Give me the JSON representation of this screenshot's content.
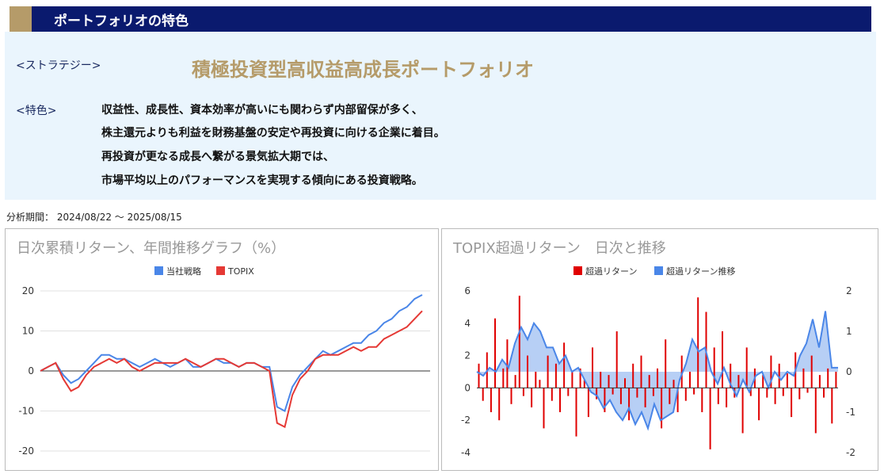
{
  "header": {
    "title": "ポートフォリオの特色"
  },
  "strategy": {
    "label": "<ストラテジー>",
    "name": "積極投資型高収益高成長ポートフォリオ"
  },
  "features": {
    "label": "<特色>",
    "lines": [
      "収益性、成長性、資本効率が高いにも関わらず内部留保が多く、",
      "株主還元よりも利益を財務基盤の安定や再投資に向ける企業に着目。",
      "再投資が更なる成長へ繋がる景気拡大期では、",
      "市場平均以上のパフォーマンスを実現する傾向にある投資戦略。"
    ]
  },
  "period": "分析期間： 2024/08/22 ～ 2025/08/15",
  "chart_data": [
    {
      "type": "line",
      "title": "日次累積リターン、年間推移グラフ（%）",
      "legend_position": "top",
      "ylim": [
        -20,
        20
      ],
      "yticks": [
        "20",
        "10",
        "0",
        "-10",
        "-20"
      ],
      "series": [
        {
          "name": "当社戦略",
          "color": "#4a86e8",
          "values": [
            0,
            1,
            2,
            -1,
            -3,
            -2,
            0,
            2,
            4,
            4,
            3,
            3,
            2,
            1,
            2,
            3,
            2,
            1,
            2,
            3,
            1,
            1,
            2,
            3,
            2,
            2,
            1,
            2,
            2,
            1,
            1,
            -9,
            -10,
            -4,
            -1,
            1,
            3,
            5,
            4,
            5,
            6,
            7,
            7,
            9,
            10,
            12,
            13,
            15,
            16,
            18,
            19
          ]
        },
        {
          "name": "TOPIX",
          "color": "#e53935",
          "values": [
            0,
            1,
            2,
            -2,
            -5,
            -4,
            -1,
            1,
            2,
            3,
            2,
            3,
            1,
            0,
            1,
            2,
            2,
            2,
            2,
            3,
            2,
            1,
            2,
            3,
            3,
            2,
            1,
            2,
            2,
            1,
            0,
            -13,
            -14,
            -6,
            -2,
            0,
            3,
            4,
            4,
            4,
            5,
            6,
            5,
            6,
            6,
            8,
            9,
            10,
            11,
            13,
            15
          ]
        }
      ]
    },
    {
      "type": "bar+area",
      "title": "TOPIX超過リターン　日次と推移",
      "legend_position": "top",
      "y_left": {
        "range": [
          -4,
          6
        ],
        "ticks": [
          "6",
          "4",
          "2",
          "0",
          "-2",
          "-4"
        ]
      },
      "y_right": {
        "range": [
          -2,
          2
        ],
        "ticks": [
          "2",
          "1",
          "0",
          "-1",
          "-2"
        ]
      },
      "series": [
        {
          "name": "超過リターン",
          "color": "#e00000",
          "axis": "left",
          "type": "bar",
          "values": [
            1.5,
            -0.8,
            2.2,
            -1.5,
            4.3,
            -2.0,
            1.2,
            3.0,
            -1.0,
            0.8,
            5.7,
            -0.5,
            2.0,
            -1.2,
            1.0,
            0.5,
            -2.5,
            2.0,
            -0.8,
            1.5,
            -1.5,
            2.8,
            -0.5,
            1.0,
            -3.0,
            1.2,
            0.5,
            -1.8,
            2.5,
            -0.7,
            1.0,
            -1.5,
            0.8,
            -0.4,
            3.5,
            -1.0,
            0.6,
            -2.0,
            1.5,
            -0.6,
            2.0,
            -1.2,
            0.8,
            -0.5,
            1.2,
            -2.5,
            3.0,
            -1.0,
            0.5,
            -1.5,
            2.0,
            -0.8,
            1.0,
            -0.4,
            5.6,
            -1.5,
            4.7,
            -3.8,
            2.5,
            -1.0,
            3.5,
            -1.2,
            1.5,
            -0.6,
            0.8,
            -2.8,
            2.5,
            -0.5,
            1.2,
            -2.0,
            0.8,
            -0.6,
            2.0,
            -1.0,
            1.5,
            -0.5,
            0.9,
            -1.8,
            2.2,
            -0.7,
            1.2,
            -0.3,
            2.0,
            -2.8,
            0.8,
            -0.6,
            1.2,
            -2.2,
            1.0
          ]
        },
        {
          "name": "超過リターン推移",
          "color": "#4a86e8",
          "fill": "#b7cff5",
          "axis": "right",
          "type": "area",
          "values": [
            0,
            -0.1,
            0.1,
            0,
            0.3,
            0.1,
            0.7,
            1.1,
            0.8,
            1.2,
            1.0,
            0.6,
            0.6,
            0.2,
            0.4,
            0,
            0.1,
            -0.2,
            -0.5,
            -0.6,
            -0.9,
            -0.7,
            -1.0,
            -1.2,
            -0.9,
            -1.3,
            -1.0,
            -1.4,
            -0.8,
            -1.2,
            -1.1,
            -1.0,
            -0.2,
            0.2,
            0.8,
            0.5,
            0.6,
            0,
            -0.3,
            0.1,
            -0.3,
            -0.6,
            -0.2,
            -0.5,
            -0.1,
            0,
            -0.4,
            0,
            -0.2,
            0,
            -0.1,
            0.4,
            0.7,
            1.3,
            0.6,
            1.5,
            0.1,
            0.1
          ]
        }
      ]
    }
  ]
}
